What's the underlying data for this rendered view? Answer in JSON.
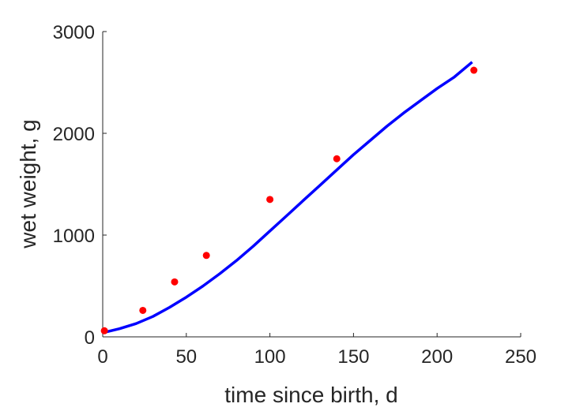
{
  "chart_data": {
    "type": "line",
    "title": "",
    "xlabel": "time since birth, d",
    "ylabel": "wet weight, g",
    "xlim": [
      0,
      250
    ],
    "ylim": [
      0,
      3000
    ],
    "xticks": [
      0,
      50,
      100,
      150,
      200,
      250
    ],
    "yticks": [
      0,
      1000,
      2000,
      3000
    ],
    "grid": false,
    "legend": "none",
    "series": [
      {
        "kind": "line",
        "color": "#0000ff",
        "x": [
          0,
          10,
          20,
          30,
          40,
          50,
          60,
          70,
          80,
          90,
          100,
          110,
          120,
          130,
          140,
          150,
          160,
          170,
          180,
          190,
          200,
          210,
          221
        ],
        "y": [
          40,
          80,
          130,
          200,
          290,
          390,
          500,
          620,
          750,
          890,
          1040,
          1190,
          1340,
          1490,
          1640,
          1790,
          1930,
          2070,
          2200,
          2320,
          2440,
          2550,
          2700
        ]
      },
      {
        "kind": "scatter",
        "color": "#ff0000",
        "x": [
          1,
          24,
          43,
          62,
          100,
          140,
          222
        ],
        "y": [
          60,
          260,
          540,
          800,
          1350,
          1750,
          2620
        ]
      }
    ]
  }
}
